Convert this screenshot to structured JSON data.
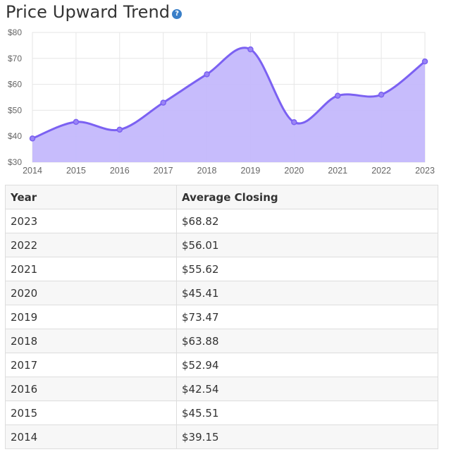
{
  "page": {
    "title": "Price Upward Trend",
    "help_icon": "question-circle-icon"
  },
  "colors": {
    "line": "#7b61f2",
    "fill": "#c4b8fc",
    "point": "#9a85f5",
    "help": "#3a7fc8"
  },
  "chart_data": {
    "type": "area",
    "x": [
      "2014",
      "2015",
      "2016",
      "2017",
      "2018",
      "2019",
      "2020",
      "2021",
      "2022",
      "2023"
    ],
    "series": [
      {
        "values": [
          39.15,
          45.51,
          42.54,
          52.94,
          63.88,
          73.47,
          45.41,
          55.62,
          56.01,
          68.82
        ]
      }
    ],
    "ylim": [
      30,
      80
    ],
    "yticks": [
      "$30",
      "$40",
      "$50",
      "$60",
      "$70",
      "$80"
    ],
    "grid": true,
    "smooth": true
  },
  "table": {
    "headers": [
      "Year",
      "Average Closing"
    ],
    "rows": [
      [
        "2023",
        "$68.82"
      ],
      [
        "2022",
        "$56.01"
      ],
      [
        "2021",
        "$55.62"
      ],
      [
        "2020",
        "$45.41"
      ],
      [
        "2019",
        "$73.47"
      ],
      [
        "2018",
        "$63.88"
      ],
      [
        "2017",
        "$52.94"
      ],
      [
        "2016",
        "$42.54"
      ],
      [
        "2015",
        "$45.51"
      ],
      [
        "2014",
        "$39.15"
      ]
    ]
  }
}
